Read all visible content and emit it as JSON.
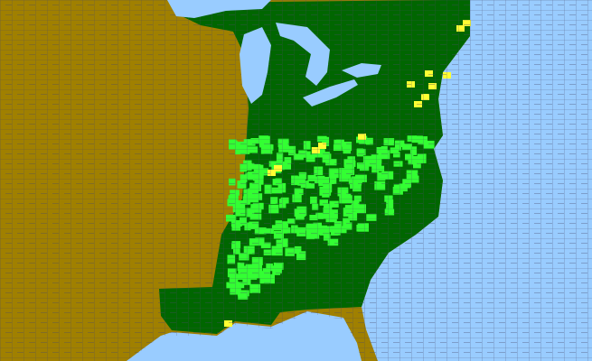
{
  "map": {
    "colors": {
      "water": "#99ccff",
      "land_absent": "#a08000",
      "state_present": "#006600",
      "county_present": "#33ff33",
      "county_uncertain": "#ffff33",
      "county_border": "#4a4a6a",
      "state_border": "#000000"
    }
  }
}
